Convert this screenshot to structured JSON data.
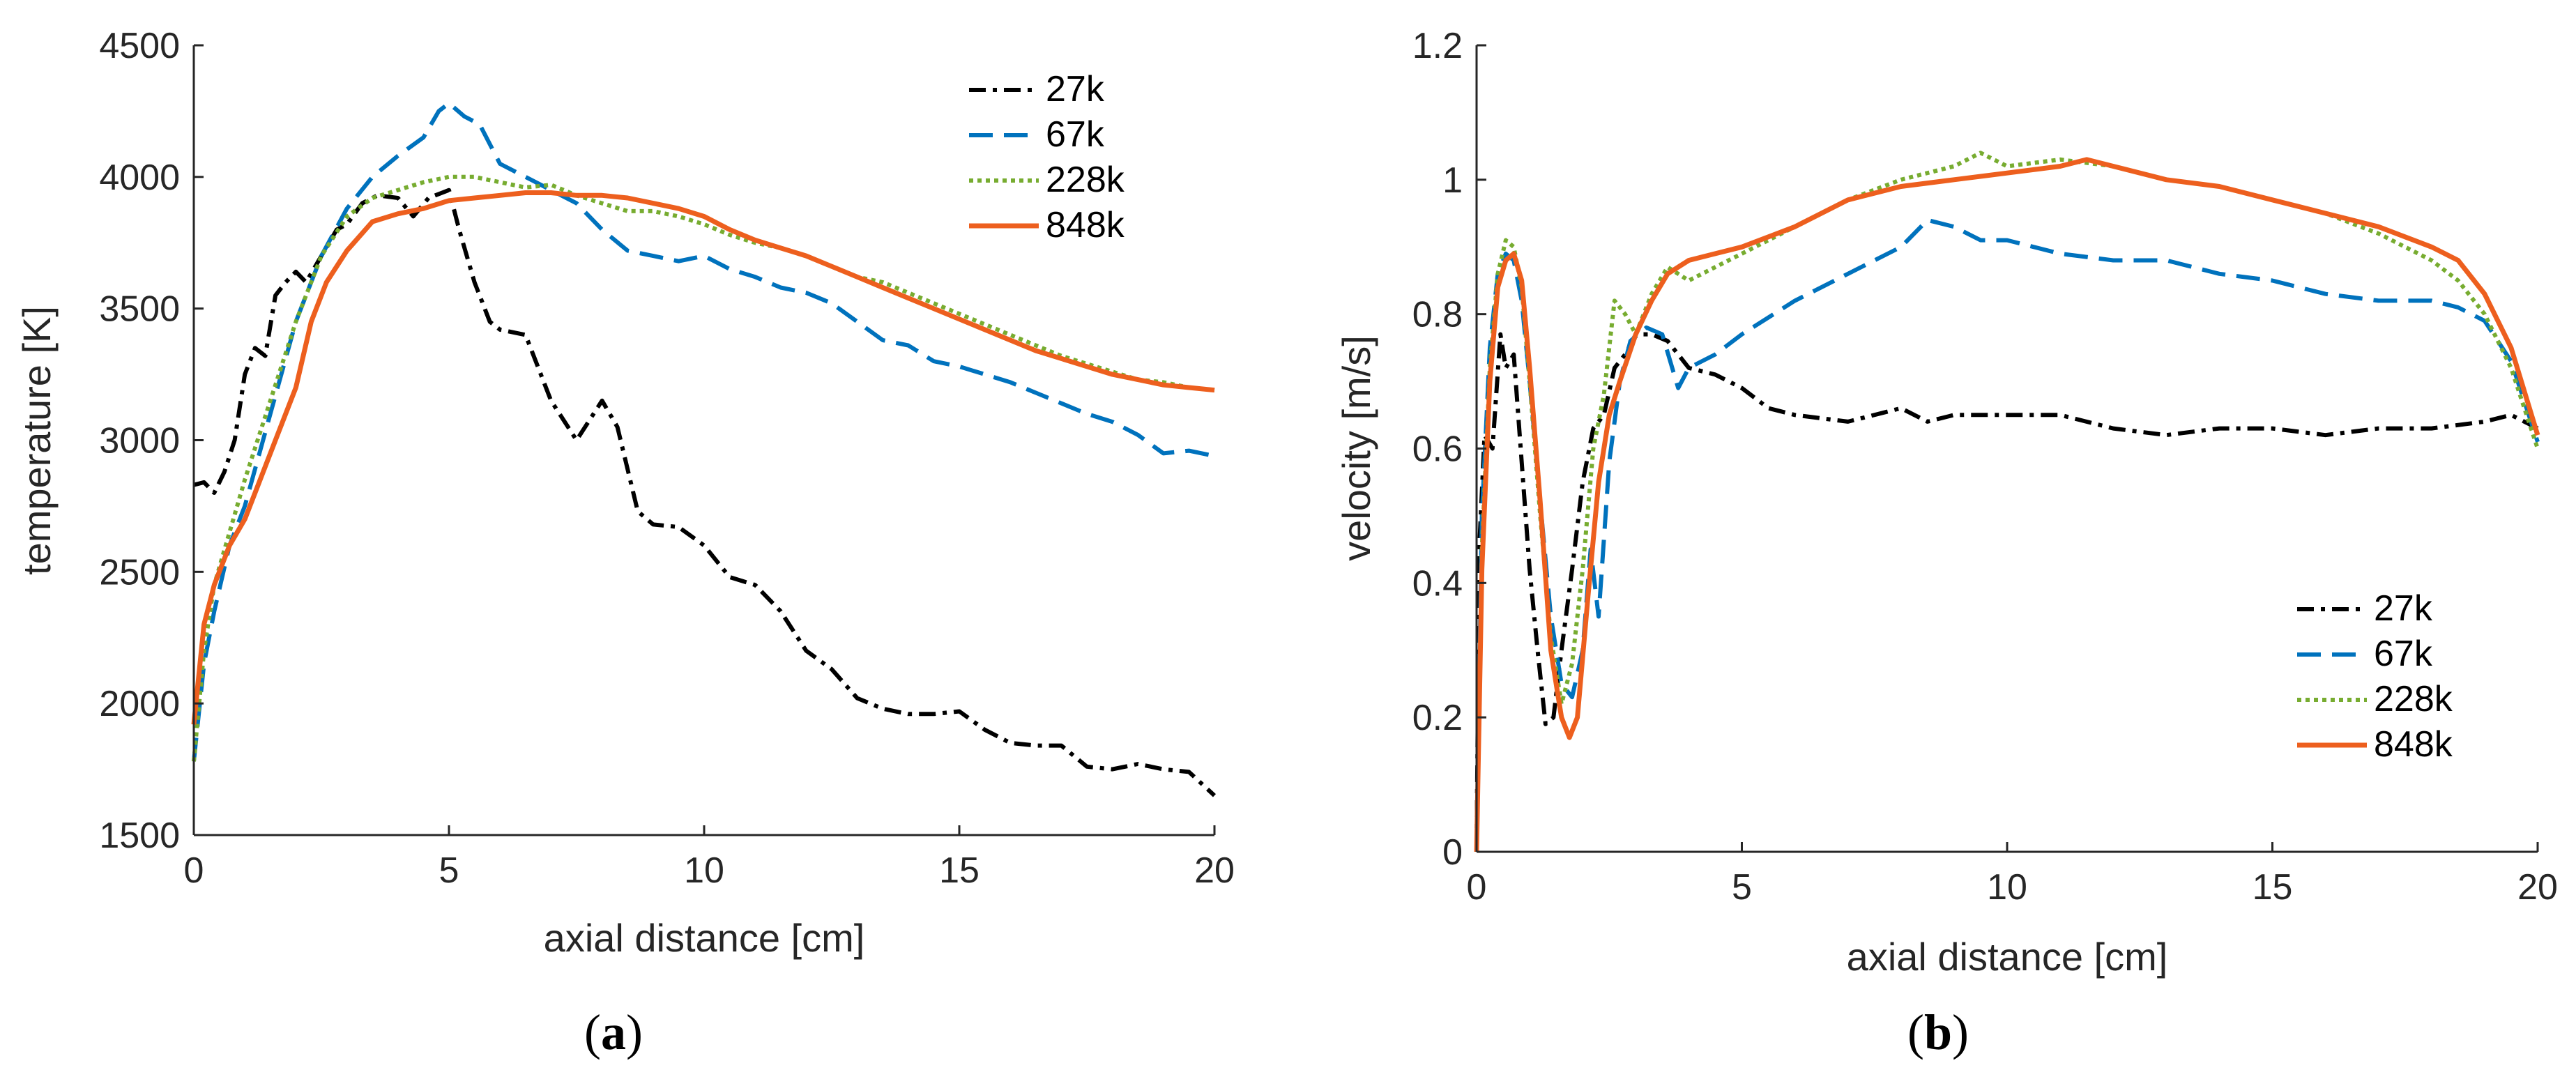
{
  "figure": {
    "panels": [
      {
        "caption_open": "(",
        "caption_letter": "a",
        "caption_close": ")"
      },
      {
        "caption_open": "(",
        "caption_letter": "b",
        "caption_close": ")"
      }
    ]
  },
  "chart_data": [
    {
      "type": "line",
      "panel": "a",
      "xlabel": "axial distance [cm]",
      "ylabel": "temperature [K]",
      "xlim": [
        0,
        20
      ],
      "ylim": [
        1500,
        4500
      ],
      "xticks": [
        0,
        5,
        10,
        15,
        20
      ],
      "yticks": [
        1500,
        2000,
        2500,
        3000,
        3500,
        4000,
        4500
      ],
      "grid": false,
      "legend_position": "top-right",
      "series": [
        {
          "name": "27k",
          "color": "#000000",
          "style": "dash-dot",
          "x": [
            0,
            0.2,
            0.4,
            0.6,
            0.8,
            1.0,
            1.2,
            1.4,
            1.6,
            1.8,
            2.0,
            2.2,
            2.5,
            2.8,
            3.0,
            3.3,
            3.6,
            4.0,
            4.3,
            4.6,
            5.0,
            5.2,
            5.5,
            5.8,
            6.0,
            6.5,
            7.0,
            7.5,
            8.0,
            8.3,
            8.7,
            9.0,
            9.5,
            10.0,
            10.5,
            11.0,
            11.5,
            12.0,
            12.5,
            13.0,
            13.5,
            14.0,
            14.5,
            15.0,
            15.5,
            16.0,
            16.5,
            17.0,
            17.5,
            18.0,
            18.5,
            19.0,
            19.5,
            20.0
          ],
          "y": [
            2830,
            2840,
            2800,
            2880,
            3000,
            3250,
            3350,
            3320,
            3550,
            3600,
            3640,
            3600,
            3700,
            3800,
            3820,
            3900,
            3930,
            3920,
            3850,
            3920,
            3950,
            3800,
            3600,
            3450,
            3420,
            3400,
            3150,
            3000,
            3150,
            3050,
            2730,
            2680,
            2670,
            2600,
            2480,
            2450,
            2350,
            2200,
            2130,
            2020,
            1980,
            1960,
            1960,
            1970,
            1900,
            1850,
            1840,
            1840,
            1760,
            1750,
            1770,
            1750,
            1740,
            1650
          ]
        },
        {
          "name": "67k",
          "color": "#0072BD",
          "style": "dash",
          "x": [
            0,
            0.2,
            0.4,
            0.7,
            1.0,
            1.5,
            2.0,
            2.5,
            3.0,
            3.5,
            4.0,
            4.5,
            4.8,
            5.0,
            5.3,
            5.6,
            6.0,
            6.5,
            7.0,
            7.5,
            8.0,
            8.5,
            9.0,
            9.5,
            10.0,
            10.5,
            11.0,
            11.5,
            12.0,
            12.5,
            13.0,
            13.5,
            14.0,
            14.5,
            15.0,
            15.5,
            16.0,
            16.5,
            17.0,
            17.5,
            18.0,
            18.5,
            19.0,
            19.5,
            20.0
          ],
          "y": [
            1780,
            2150,
            2350,
            2600,
            2750,
            3100,
            3450,
            3700,
            3880,
            4000,
            4080,
            4150,
            4250,
            4280,
            4230,
            4200,
            4050,
            4000,
            3950,
            3900,
            3800,
            3720,
            3700,
            3680,
            3700,
            3650,
            3620,
            3580,
            3560,
            3520,
            3450,
            3380,
            3360,
            3300,
            3280,
            3250,
            3220,
            3180,
            3140,
            3100,
            3070,
            3020,
            2950,
            2960,
            2940
          ]
        },
        {
          "name": "228k",
          "color": "#77AC30",
          "style": "dotted",
          "x": [
            0,
            0.2,
            0.4,
            0.7,
            1.0,
            1.5,
            2.0,
            2.5,
            3.0,
            3.5,
            4.0,
            4.5,
            5.0,
            5.5,
            6.0,
            6.5,
            7.0,
            7.5,
            8.0,
            8.5,
            9.0,
            9.5,
            10.0,
            10.5,
            11.0,
            11.5,
            12.0,
            12.5,
            13.0,
            13.5,
            14.0,
            14.5,
            15.0,
            15.5,
            16.0,
            16.5,
            17.0,
            17.5,
            18.0,
            18.5,
            19.0,
            19.5,
            20.0
          ],
          "y": [
            1780,
            2200,
            2450,
            2650,
            2850,
            3150,
            3450,
            3700,
            3850,
            3920,
            3950,
            3980,
            4000,
            4000,
            3980,
            3960,
            3970,
            3930,
            3900,
            3870,
            3870,
            3850,
            3820,
            3780,
            3750,
            3730,
            3700,
            3660,
            3620,
            3600,
            3560,
            3520,
            3480,
            3440,
            3400,
            3360,
            3320,
            3290,
            3260,
            3230,
            3220,
            3200,
            3190
          ]
        },
        {
          "name": "848k",
          "color": "#ED5F1E",
          "style": "solid",
          "x": [
            0,
            0.2,
            0.4,
            0.7,
            1.0,
            1.3,
            1.6,
            2.0,
            2.3,
            2.6,
            3.0,
            3.5,
            4.0,
            4.5,
            5.0,
            5.5,
            6.0,
            6.5,
            7.0,
            7.5,
            8.0,
            8.5,
            9.0,
            9.5,
            10.0,
            10.5,
            11.0,
            11.5,
            12.0,
            12.5,
            13.0,
            13.5,
            14.0,
            14.5,
            15.0,
            15.5,
            16.0,
            16.5,
            17.0,
            17.5,
            18.0,
            18.5,
            19.0,
            19.5,
            20.0
          ],
          "y": [
            1920,
            2300,
            2450,
            2600,
            2700,
            2850,
            3000,
            3200,
            3450,
            3600,
            3720,
            3830,
            3860,
            3880,
            3910,
            3920,
            3930,
            3940,
            3940,
            3930,
            3930,
            3920,
            3900,
            3880,
            3850,
            3800,
            3760,
            3730,
            3700,
            3660,
            3620,
            3580,
            3540,
            3500,
            3460,
            3420,
            3380,
            3340,
            3310,
            3280,
            3250,
            3230,
            3210,
            3200,
            3190
          ]
        }
      ]
    },
    {
      "type": "line",
      "panel": "b",
      "xlabel": "axial distance [cm]",
      "ylabel": "velocity [m/s]",
      "xlim": [
        0,
        20
      ],
      "ylim": [
        0,
        1.2
      ],
      "xticks": [
        0,
        5,
        10,
        15,
        20
      ],
      "yticks": [
        0,
        0.2,
        0.4,
        0.6,
        0.8,
        1,
        1.2
      ],
      "ytick_labels": [
        "0",
        "0.2",
        "0.4",
        "0.6",
        "0.8",
        "1",
        "1.2"
      ],
      "grid": false,
      "legend_position": "bottom-right",
      "series": [
        {
          "name": "27k",
          "color": "#000000",
          "style": "dash-dot",
          "x": [
            0,
            0.05,
            0.15,
            0.3,
            0.45,
            0.55,
            0.7,
            0.85,
            1.0,
            1.15,
            1.3,
            1.45,
            1.6,
            1.8,
            2.0,
            2.2,
            2.4,
            2.6,
            2.8,
            3.0,
            3.3,
            3.6,
            4.0,
            4.5,
            5.0,
            5.5,
            6.0,
            7.0,
            8.0,
            8.5,
            9.0,
            10.0,
            11.0,
            12.0,
            13.0,
            14.0,
            15.0,
            16.0,
            17.0,
            18.0,
            19.0,
            19.5,
            20.0
          ],
          "y": [
            0,
            0.45,
            0.62,
            0.6,
            0.77,
            0.72,
            0.74,
            0.58,
            0.42,
            0.3,
            0.19,
            0.2,
            0.3,
            0.42,
            0.55,
            0.63,
            0.65,
            0.72,
            0.74,
            0.77,
            0.77,
            0.76,
            0.72,
            0.71,
            0.69,
            0.66,
            0.65,
            0.64,
            0.66,
            0.64,
            0.65,
            0.65,
            0.65,
            0.63,
            0.62,
            0.63,
            0.63,
            0.62,
            0.63,
            0.63,
            0.64,
            0.65,
            0.63
          ]
        },
        {
          "name": "67k",
          "color": "#0072BD",
          "style": "dash",
          "x": [
            0,
            0.1,
            0.25,
            0.4,
            0.55,
            0.7,
            0.85,
            1.0,
            1.2,
            1.4,
            1.6,
            1.8,
            2.0,
            2.15,
            2.3,
            2.5,
            2.7,
            2.9,
            3.2,
            3.5,
            3.8,
            4.0,
            4.5,
            5.0,
            6.0,
            7.0,
            8.0,
            8.5,
            9.0,
            9.5,
            10.0,
            11.0,
            12.0,
            13.0,
            14.0,
            15.0,
            16.0,
            17.0,
            18.0,
            18.5,
            19.0,
            19.5,
            20.0
          ],
          "y": [
            0,
            0.5,
            0.75,
            0.86,
            0.89,
            0.88,
            0.82,
            0.7,
            0.52,
            0.35,
            0.25,
            0.23,
            0.3,
            0.45,
            0.35,
            0.58,
            0.7,
            0.76,
            0.78,
            0.77,
            0.69,
            0.72,
            0.74,
            0.77,
            0.82,
            0.86,
            0.9,
            0.94,
            0.93,
            0.91,
            0.91,
            0.89,
            0.88,
            0.88,
            0.86,
            0.85,
            0.83,
            0.82,
            0.82,
            0.81,
            0.79,
            0.73,
            0.61
          ]
        },
        {
          "name": "228k",
          "color": "#77AC30",
          "style": "dotted",
          "x": [
            0,
            0.1,
            0.25,
            0.4,
            0.55,
            0.7,
            0.85,
            1.0,
            1.2,
            1.4,
            1.6,
            1.8,
            2.0,
            2.2,
            2.4,
            2.6,
            2.8,
            3.0,
            3.3,
            3.6,
            4.0,
            4.5,
            5.0,
            6.0,
            7.0,
            8.0,
            9.0,
            9.5,
            10.0,
            11.0,
            12.0,
            13.0,
            14.0,
            15.0,
            16.0,
            17.0,
            18.0,
            18.5,
            19.0,
            19.5,
            20.0
          ],
          "y": [
            0,
            0.45,
            0.72,
            0.86,
            0.91,
            0.9,
            0.84,
            0.7,
            0.5,
            0.32,
            0.22,
            0.28,
            0.42,
            0.6,
            0.68,
            0.82,
            0.8,
            0.77,
            0.83,
            0.87,
            0.85,
            0.87,
            0.89,
            0.93,
            0.97,
            1.0,
            1.02,
            1.04,
            1.02,
            1.03,
            1.02,
            1.0,
            0.99,
            0.97,
            0.95,
            0.92,
            0.88,
            0.85,
            0.8,
            0.72,
            0.6
          ]
        },
        {
          "name": "848k",
          "color": "#ED5F1E",
          "style": "solid",
          "x": [
            0,
            0.1,
            0.25,
            0.4,
            0.55,
            0.7,
            0.85,
            1.0,
            1.2,
            1.4,
            1.6,
            1.75,
            1.9,
            2.1,
            2.3,
            2.5,
            2.7,
            3.0,
            3.3,
            3.6,
            4.0,
            4.5,
            5.0,
            6.0,
            7.0,
            8.0,
            9.0,
            10.0,
            11.0,
            11.5,
            12.0,
            13.0,
            14.0,
            15.0,
            16.0,
            17.0,
            18.0,
            18.5,
            19.0,
            19.5,
            20.0
          ],
          "y": [
            0,
            0.42,
            0.7,
            0.84,
            0.88,
            0.89,
            0.85,
            0.72,
            0.52,
            0.3,
            0.2,
            0.17,
            0.2,
            0.38,
            0.55,
            0.65,
            0.7,
            0.77,
            0.82,
            0.86,
            0.88,
            0.89,
            0.9,
            0.93,
            0.97,
            0.99,
            1.0,
            1.01,
            1.02,
            1.03,
            1.02,
            1.0,
            0.99,
            0.97,
            0.95,
            0.93,
            0.9,
            0.88,
            0.83,
            0.75,
            0.62
          ]
        }
      ]
    }
  ]
}
